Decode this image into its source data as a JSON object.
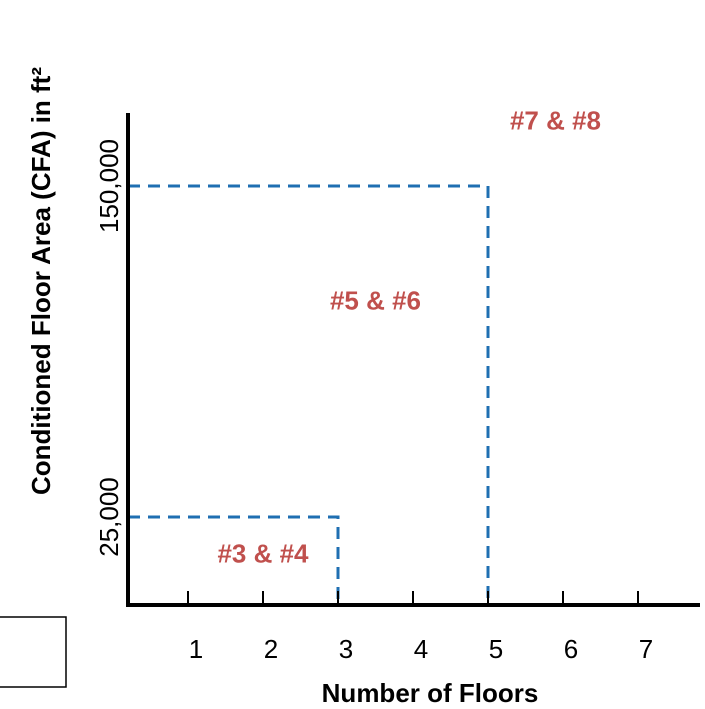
{
  "chart_data": {
    "type": "area",
    "title": "",
    "xlabel": "Number of Floors",
    "ylabel": "Conditioned Floor Area (CFA) in ft²",
    "x_ticks": [
      "1",
      "2",
      "3",
      "4",
      "5",
      "6",
      "7"
    ],
    "x_tick_values": [
      1,
      2,
      3,
      4,
      5,
      6,
      7
    ],
    "y_ticks": [
      "25,000",
      "150,000"
    ],
    "y_tick_values": [
      25000,
      150000
    ],
    "boundaries": [
      {
        "max_floors": 3,
        "max_cfa": 25000
      },
      {
        "max_floors": 5,
        "max_cfa": 150000
      }
    ],
    "regions": [
      {
        "label": "#3 & #4",
        "floors": 2,
        "cfa": 14000
      },
      {
        "label": "#5 & #6",
        "floors": 3.5,
        "cfa": 106000
      },
      {
        "label": "#7 & #8",
        "floors": 5.9,
        "cfa": 174000
      }
    ],
    "region_label_color": "#c0504d",
    "boundary_color": "#1f6fb2",
    "grid": false
  }
}
